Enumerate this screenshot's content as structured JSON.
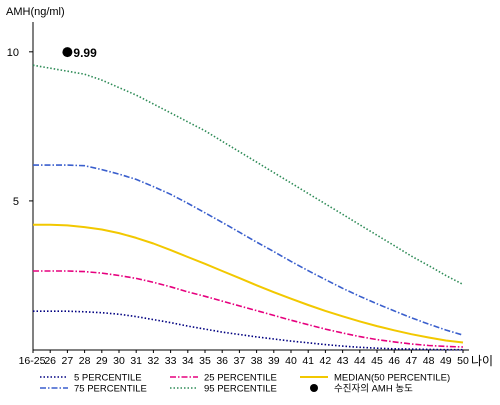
{
  "chart_data": {
    "type": "line",
    "ylabel": "AMH(ng/ml)",
    "xlabel": "나이",
    "ylim": [
      0,
      11
    ],
    "yticks": [
      5,
      10
    ],
    "grid": false,
    "legend_position": "bottom",
    "categories": [
      "16-25",
      "26",
      "27",
      "28",
      "29",
      "30",
      "31",
      "32",
      "33",
      "34",
      "35",
      "36",
      "37",
      "38",
      "39",
      "40",
      "41",
      "42",
      "43",
      "44",
      "45",
      "46",
      "47",
      "48",
      "49",
      "50"
    ],
    "series": [
      {
        "name": "5 PERCENTILE",
        "color": "#000080",
        "dash": "dotted",
        "values": [
          1.3,
          1.3,
          1.3,
          1.28,
          1.25,
          1.2,
          1.12,
          1.02,
          0.92,
          0.8,
          0.7,
          0.6,
          0.52,
          0.44,
          0.37,
          0.3,
          0.24,
          0.18,
          0.13,
          0.09,
          0.06,
          0.04,
          0.03,
          0.02,
          0.01,
          0.01
        ]
      },
      {
        "name": "25 PERCENTILE",
        "color": "#e6007e",
        "dash": "dashdot",
        "values": [
          2.65,
          2.65,
          2.65,
          2.63,
          2.58,
          2.5,
          2.4,
          2.27,
          2.12,
          1.95,
          1.8,
          1.64,
          1.48,
          1.32,
          1.16,
          1.0,
          0.85,
          0.7,
          0.57,
          0.45,
          0.35,
          0.27,
          0.2,
          0.15,
          0.12,
          0.1
        ]
      },
      {
        "name": "MEDIAN(50 PERCENTILE)",
        "color": "#f2c800",
        "dash": "solid",
        "values": [
          4.2,
          4.2,
          4.18,
          4.12,
          4.04,
          3.92,
          3.76,
          3.57,
          3.35,
          3.12,
          2.89,
          2.65,
          2.41,
          2.17,
          1.94,
          1.72,
          1.51,
          1.31,
          1.13,
          0.96,
          0.8,
          0.66,
          0.53,
          0.42,
          0.32,
          0.25
        ]
      },
      {
        "name": "75 PERCENTILE",
        "color": "#3a5fcd",
        "dash": "dashdot",
        "values": [
          6.2,
          6.2,
          6.2,
          6.18,
          6.05,
          5.9,
          5.72,
          5.48,
          5.22,
          4.92,
          4.6,
          4.28,
          3.95,
          3.62,
          3.3,
          2.97,
          2.66,
          2.36,
          2.07,
          1.8,
          1.55,
          1.31,
          1.08,
          0.87,
          0.67,
          0.5
        ]
      },
      {
        "name": "95 PERCENTILE",
        "color": "#2e8b57",
        "dash": "dotted",
        "values": [
          9.55,
          9.45,
          9.35,
          9.25,
          9.05,
          8.8,
          8.55,
          8.25,
          7.95,
          7.65,
          7.35,
          7.0,
          6.65,
          6.3,
          5.95,
          5.6,
          5.25,
          4.9,
          4.55,
          4.2,
          3.85,
          3.5,
          3.15,
          2.83,
          2.5,
          2.2
        ]
      }
    ],
    "marker": {
      "name": "수진자의 AMH 농도",
      "label": "9.99",
      "x": "27",
      "y": 9.99,
      "color": "#000000"
    }
  },
  "colors": {
    "axis": "#000000",
    "background": "#ffffff"
  }
}
